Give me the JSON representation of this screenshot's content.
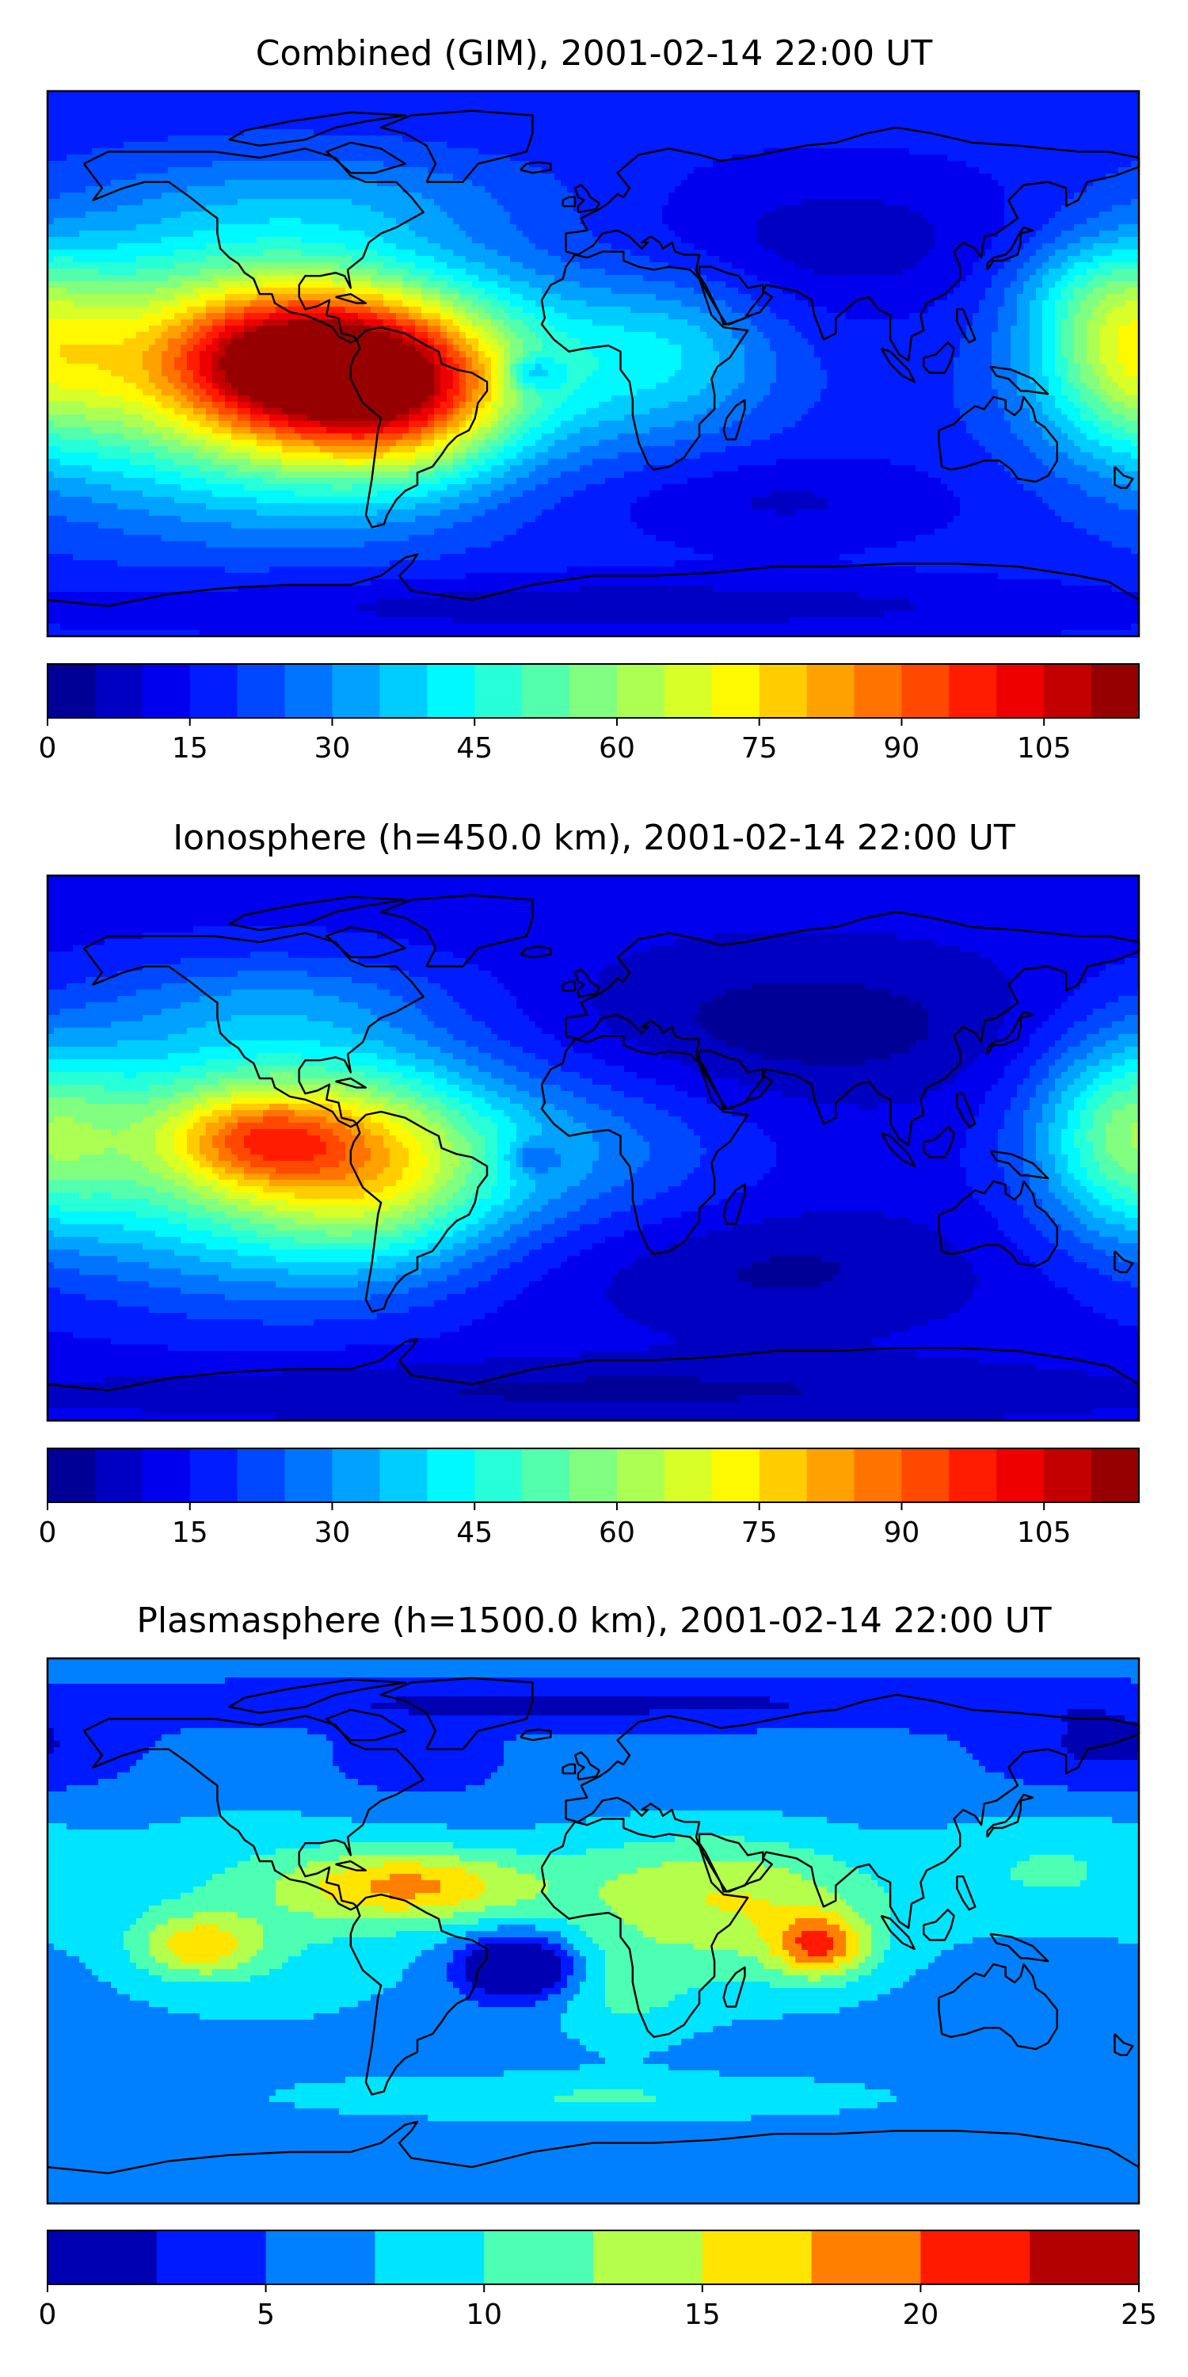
{
  "chart_data": [
    {
      "type": "heatmap",
      "title": "Combined (GIM), 2001-02-14 22:00 UT",
      "colorbar": {
        "vmin": 0,
        "vmax": 115,
        "step": 5,
        "ticks": [
          0,
          15,
          30,
          45,
          60,
          75,
          90,
          105
        ],
        "tick_labels": [
          "0",
          "15",
          "30",
          "45",
          "60",
          "75",
          "90",
          "105"
        ]
      },
      "background_level": 17,
      "blobs": [
        {
          "lon": -115,
          "lat": 0,
          "rx": 70,
          "ry": 42,
          "value": 60
        },
        {
          "lon": -100,
          "lat": 1,
          "rx": 38,
          "ry": 20,
          "value": 35
        },
        {
          "lon": -75,
          "lat": -8,
          "rx": 40,
          "ry": 30,
          "value": 38
        },
        {
          "lon": -55,
          "lat": -10,
          "rx": 30,
          "ry": 25,
          "value": 22
        },
        {
          "lon": -10,
          "lat": 0,
          "rx": 60,
          "ry": 30,
          "value": 20
        },
        {
          "lon": 30,
          "lat": 5,
          "rx": 30,
          "ry": 25,
          "value": 10
        },
        {
          "lon": 175,
          "lat": 5,
          "rx": 30,
          "ry": 32,
          "value": 32
        },
        {
          "lon": 160,
          "lat": 25,
          "rx": 25,
          "ry": 15,
          "value": 8
        },
        {
          "lon": -20,
          "lat": -3,
          "rx": 9,
          "ry": 6,
          "value": -18
        },
        {
          "lon": -80,
          "lat": 55,
          "rx": 70,
          "ry": 15,
          "value": 8
        },
        {
          "lon": 80,
          "lat": 40,
          "rx": 70,
          "ry": 25,
          "value": -10
        },
        {
          "lon": 60,
          "lat": -45,
          "rx": 60,
          "ry": 15,
          "value": -8
        },
        {
          "lon": 0,
          "lat": -80,
          "rx": 180,
          "ry": 10,
          "value": -10
        }
      ]
    },
    {
      "type": "heatmap",
      "title": "Ionosphere  (h=450.0 km), 2001-02-14 22:00 UT",
      "colorbar": {
        "vmin": 0,
        "vmax": 115,
        "step": 5,
        "ticks": [
          0,
          15,
          30,
          45,
          60,
          75,
          90,
          105
        ],
        "tick_labels": [
          "0",
          "15",
          "30",
          "45",
          "60",
          "75",
          "90",
          "105"
        ]
      },
      "background_level": 12,
      "blobs": [
        {
          "lon": -115,
          "lat": 0,
          "rx": 70,
          "ry": 42,
          "value": 48
        },
        {
          "lon": -110,
          "lat": 3,
          "rx": 30,
          "ry": 15,
          "value": 28
        },
        {
          "lon": -70,
          "lat": -8,
          "rx": 40,
          "ry": 30,
          "value": 30
        },
        {
          "lon": -10,
          "lat": 0,
          "rx": 60,
          "ry": 28,
          "value": 15
        },
        {
          "lon": 175,
          "lat": 5,
          "rx": 30,
          "ry": 32,
          "value": 30
        },
        {
          "lon": -20,
          "lat": -3,
          "rx": 9,
          "ry": 6,
          "value": -14
        },
        {
          "lon": -100,
          "lat": 50,
          "rx": 60,
          "ry": 15,
          "value": 8
        },
        {
          "lon": 70,
          "lat": 40,
          "rx": 80,
          "ry": 25,
          "value": -10
        },
        {
          "lon": 60,
          "lat": -40,
          "rx": 70,
          "ry": 20,
          "value": -8
        },
        {
          "lon": 0,
          "lat": -80,
          "rx": 180,
          "ry": 10,
          "value": -8
        }
      ]
    },
    {
      "type": "heatmap",
      "title": "Plasmasphere (h=1500.0 km), 2001-02-14 22:00 UT",
      "colorbar": {
        "vmin": 0,
        "vmax": 25,
        "step": 2.5,
        "ticks": [
          0,
          5,
          10,
          15,
          20,
          25
        ],
        "tick_labels": [
          "0",
          "5",
          "10",
          "15",
          "20",
          "25"
        ]
      },
      "background_level": 6,
      "blobs": [
        {
          "lon": -60,
          "lat": 15,
          "rx": 40,
          "ry": 12,
          "value": 10
        },
        {
          "lon": 30,
          "lat": 15,
          "rx": 55,
          "ry": 20,
          "value": 6
        },
        {
          "lon": 75,
          "lat": -5,
          "rx": 15,
          "ry": 10,
          "value": 10
        },
        {
          "lon": 60,
          "lat": 0,
          "rx": 45,
          "ry": 25,
          "value": 5
        },
        {
          "lon": -130,
          "lat": -5,
          "rx": 20,
          "ry": 10,
          "value": 8
        },
        {
          "lon": -110,
          "lat": 5,
          "rx": 60,
          "ry": 35,
          "value": 4
        },
        {
          "lon": -25,
          "lat": -12,
          "rx": 18,
          "ry": 10,
          "value": -12
        },
        {
          "lon": 10,
          "lat": -20,
          "rx": 25,
          "ry": 20,
          "value": 4
        },
        {
          "lon": 150,
          "lat": 20,
          "rx": 40,
          "ry": 20,
          "value": 4
        },
        {
          "lon": 0,
          "lat": -55,
          "rx": 100,
          "ry": 8,
          "value": 4
        },
        {
          "lon": -60,
          "lat": 55,
          "rx": 30,
          "ry": 12,
          "value": -3
        },
        {
          "lon": 170,
          "lat": 60,
          "rx": 40,
          "ry": 15,
          "value": -4
        },
        {
          "lon": 0,
          "lat": 75,
          "rx": 180,
          "ry": 8,
          "value": -4
        }
      ]
    }
  ]
}
